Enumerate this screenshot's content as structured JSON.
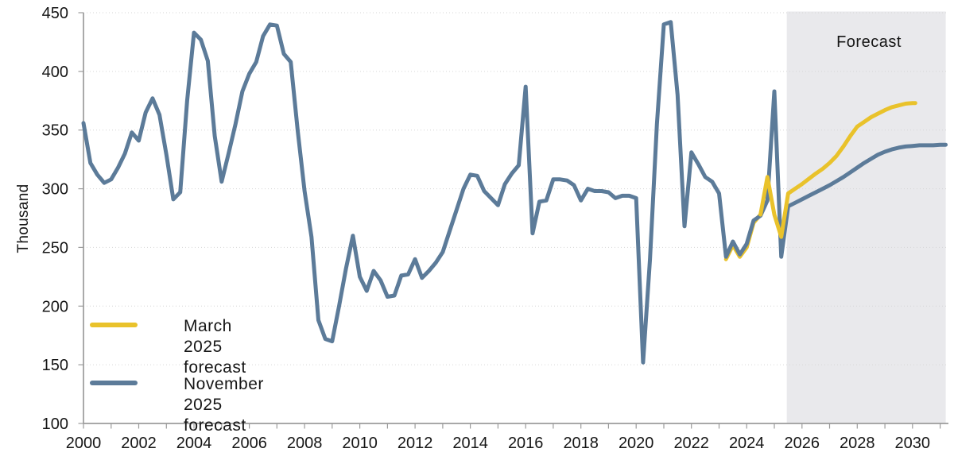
{
  "legend": {
    "items": [
      {
        "label": "March 2025\nforecast",
        "color": "#E9C22B"
      },
      {
        "label": "November 2025\nforecast",
        "color": "#5C7B99"
      }
    ]
  },
  "chart_data": {
    "type": "line",
    "title": "",
    "y_axis_title": "Thousand",
    "xlim": [
      2000,
      2031.3
    ],
    "ylim": [
      100,
      450
    ],
    "y_ticks": [
      100,
      150,
      200,
      250,
      300,
      350,
      400,
      450
    ],
    "x_tick_labels": [
      2000,
      2002,
      2004,
      2006,
      2008,
      2010,
      2012,
      2014,
      2016,
      2018,
      2020,
      2022,
      2024,
      2026,
      2028,
      2030
    ],
    "x_minor_tick_start": 2000,
    "x_minor_tick_end": 2031,
    "grid": "horizontal-dotted",
    "legend_position": "inside-bottom-left",
    "forecast_region": {
      "start": 2025.45,
      "end": 2031.2,
      "label": "Forecast"
    },
    "colors": {
      "forecast_band": "#E9E9EC",
      "gridline": "#D6D6D6",
      "axis": "#9B9B9B",
      "text": "#161616"
    },
    "series": [
      {
        "name": "November 2025 forecast",
        "color": "#5C7B99",
        "points": [
          [
            2000,
            356
          ],
          [
            2000.25,
            322
          ],
          [
            2000.5,
            312
          ],
          [
            2000.75,
            305
          ],
          [
            2001,
            308
          ],
          [
            2001.25,
            318
          ],
          [
            2001.5,
            330
          ],
          [
            2001.75,
            348
          ],
          [
            2002,
            341
          ],
          [
            2002.25,
            365
          ],
          [
            2002.5,
            377
          ],
          [
            2002.75,
            363
          ],
          [
            2003,
            329
          ],
          [
            2003.25,
            291
          ],
          [
            2003.5,
            297
          ],
          [
            2003.75,
            375
          ],
          [
            2004,
            433
          ],
          [
            2004.25,
            427
          ],
          [
            2004.5,
            409
          ],
          [
            2004.75,
            345
          ],
          [
            2005,
            306
          ],
          [
            2005.25,
            330
          ],
          [
            2005.5,
            355
          ],
          [
            2005.75,
            383
          ],
          [
            2006,
            398
          ],
          [
            2006.25,
            408
          ],
          [
            2006.5,
            430
          ],
          [
            2006.75,
            440
          ],
          [
            2007,
            439
          ],
          [
            2007.25,
            415
          ],
          [
            2007.5,
            408
          ],
          [
            2007.75,
            350
          ],
          [
            2008,
            298
          ],
          [
            2008.25,
            259
          ],
          [
            2008.5,
            188
          ],
          [
            2008.75,
            172
          ],
          [
            2009,
            170
          ],
          [
            2009.25,
            200
          ],
          [
            2009.5,
            232
          ],
          [
            2009.75,
            260
          ],
          [
            2010,
            225
          ],
          [
            2010.25,
            213
          ],
          [
            2010.5,
            230
          ],
          [
            2010.75,
            222
          ],
          [
            2011,
            208
          ],
          [
            2011.25,
            209
          ],
          [
            2011.5,
            226
          ],
          [
            2011.75,
            227
          ],
          [
            2012,
            240
          ],
          [
            2012.25,
            224
          ],
          [
            2012.5,
            230
          ],
          [
            2012.75,
            237
          ],
          [
            2013,
            246
          ],
          [
            2013.25,
            264
          ],
          [
            2013.5,
            282
          ],
          [
            2013.75,
            300
          ],
          [
            2014,
            312
          ],
          [
            2014.25,
            311
          ],
          [
            2014.5,
            298
          ],
          [
            2014.75,
            292
          ],
          [
            2015,
            286
          ],
          [
            2015.25,
            304
          ],
          [
            2015.5,
            313
          ],
          [
            2015.75,
            320
          ],
          [
            2016,
            387
          ],
          [
            2016.25,
            262
          ],
          [
            2016.5,
            289
          ],
          [
            2016.75,
            290
          ],
          [
            2017,
            308
          ],
          [
            2017.25,
            308
          ],
          [
            2017.5,
            307
          ],
          [
            2017.75,
            303
          ],
          [
            2018,
            290
          ],
          [
            2018.25,
            300
          ],
          [
            2018.5,
            298
          ],
          [
            2018.75,
            298
          ],
          [
            2019,
            297
          ],
          [
            2019.25,
            292
          ],
          [
            2019.5,
            294
          ],
          [
            2019.75,
            294
          ],
          [
            2020,
            292
          ],
          [
            2020.25,
            152
          ],
          [
            2020.5,
            240
          ],
          [
            2020.75,
            355
          ],
          [
            2021,
            440
          ],
          [
            2021.25,
            442
          ],
          [
            2021.5,
            380
          ],
          [
            2021.75,
            268
          ],
          [
            2022,
            331
          ],
          [
            2022.25,
            321
          ],
          [
            2022.5,
            310
          ],
          [
            2022.75,
            306
          ],
          [
            2023,
            296
          ],
          [
            2023.25,
            242
          ],
          [
            2023.5,
            255
          ],
          [
            2023.75,
            244
          ],
          [
            2024,
            253
          ],
          [
            2024.25,
            273
          ],
          [
            2024.5,
            277
          ],
          [
            2024.75,
            290
          ],
          [
            2025,
            383
          ],
          [
            2025.25,
            242
          ],
          [
            2025.5,
            285
          ],
          [
            2025.75,
            288
          ],
          [
            2026,
            291
          ],
          [
            2026.25,
            294
          ],
          [
            2026.5,
            297
          ],
          [
            2026.75,
            300
          ],
          [
            2027,
            303
          ],
          [
            2027.25,
            306.5
          ],
          [
            2027.5,
            310
          ],
          [
            2027.75,
            314
          ],
          [
            2028,
            318
          ],
          [
            2028.25,
            322
          ],
          [
            2028.5,
            325.5
          ],
          [
            2028.75,
            329
          ],
          [
            2029,
            331.5
          ],
          [
            2029.25,
            333.5
          ],
          [
            2029.5,
            335
          ],
          [
            2029.75,
            336
          ],
          [
            2030,
            336.5
          ],
          [
            2030.25,
            337
          ],
          [
            2030.5,
            337
          ],
          [
            2030.75,
            337
          ],
          [
            2031,
            337.5
          ],
          [
            2031.2,
            337.5
          ]
        ]
      },
      {
        "name": "March 2025 forecast",
        "color": "#E9C22B",
        "overlay_from": 2024.5,
        "points": [
          [
            2023.25,
            240
          ],
          [
            2023.5,
            252
          ],
          [
            2023.75,
            242
          ],
          [
            2024,
            250
          ],
          [
            2024.25,
            271
          ],
          [
            2024.5,
            278
          ],
          [
            2024.75,
            310
          ],
          [
            2025,
            278
          ],
          [
            2025.25,
            259
          ],
          [
            2025.5,
            296
          ],
          [
            2025.75,
            300
          ],
          [
            2026,
            304
          ],
          [
            2026.25,
            308.5
          ],
          [
            2026.5,
            313
          ],
          [
            2026.75,
            317
          ],
          [
            2027,
            322
          ],
          [
            2027.25,
            328
          ],
          [
            2027.5,
            336
          ],
          [
            2027.75,
            345
          ],
          [
            2028,
            353
          ],
          [
            2028.25,
            357
          ],
          [
            2028.5,
            361
          ],
          [
            2028.75,
            364
          ],
          [
            2029,
            367
          ],
          [
            2029.25,
            369.5
          ],
          [
            2029.5,
            371
          ],
          [
            2029.75,
            372.5
          ],
          [
            2030,
            373
          ],
          [
            2030.1,
            373
          ]
        ]
      }
    ]
  }
}
